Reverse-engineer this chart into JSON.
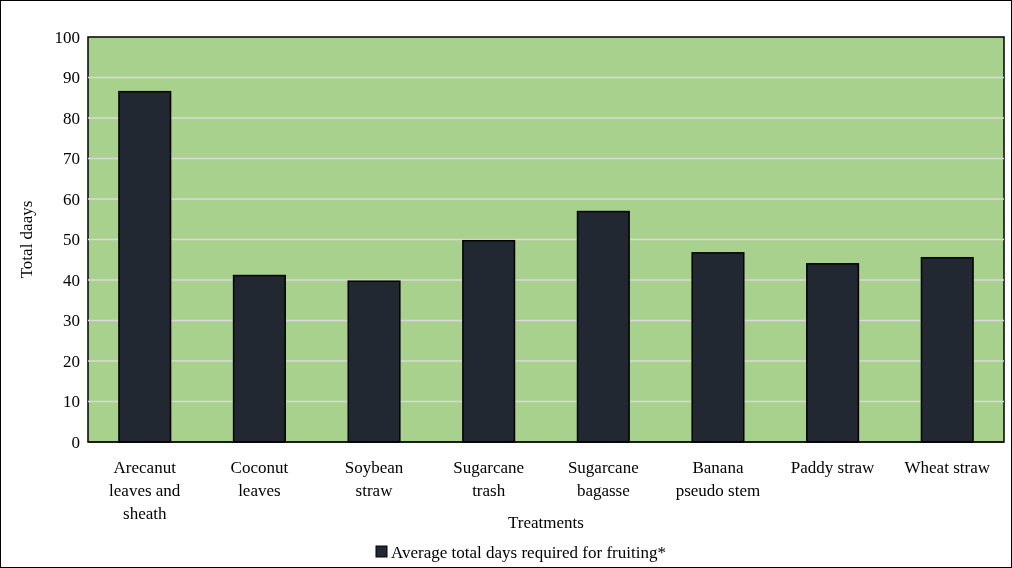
{
  "chart_data": {
    "type": "bar",
    "xlabel": "Treatments",
    "ylabel": "Total daays",
    "categories": [
      "Arecanut leaves and sheath",
      "Coconut leaves",
      "Soybean straw",
      "Sugarcane trash",
      "Sugarcane bagasse",
      "Banana pseudo stem",
      "Paddy straw",
      "Wheat straw"
    ],
    "series": [
      {
        "name": "Average total days required for fruiting*",
        "color": "#222831",
        "values": [
          86.5,
          41.1,
          39.7,
          49.7,
          56.9,
          46.7,
          44.0,
          45.5
        ]
      }
    ],
    "ylim": [
      0,
      100
    ],
    "yticks": [
      0,
      10,
      20,
      30,
      40,
      50,
      60,
      70,
      80,
      90,
      100
    ],
    "grid": "y",
    "legend": "bottom"
  }
}
